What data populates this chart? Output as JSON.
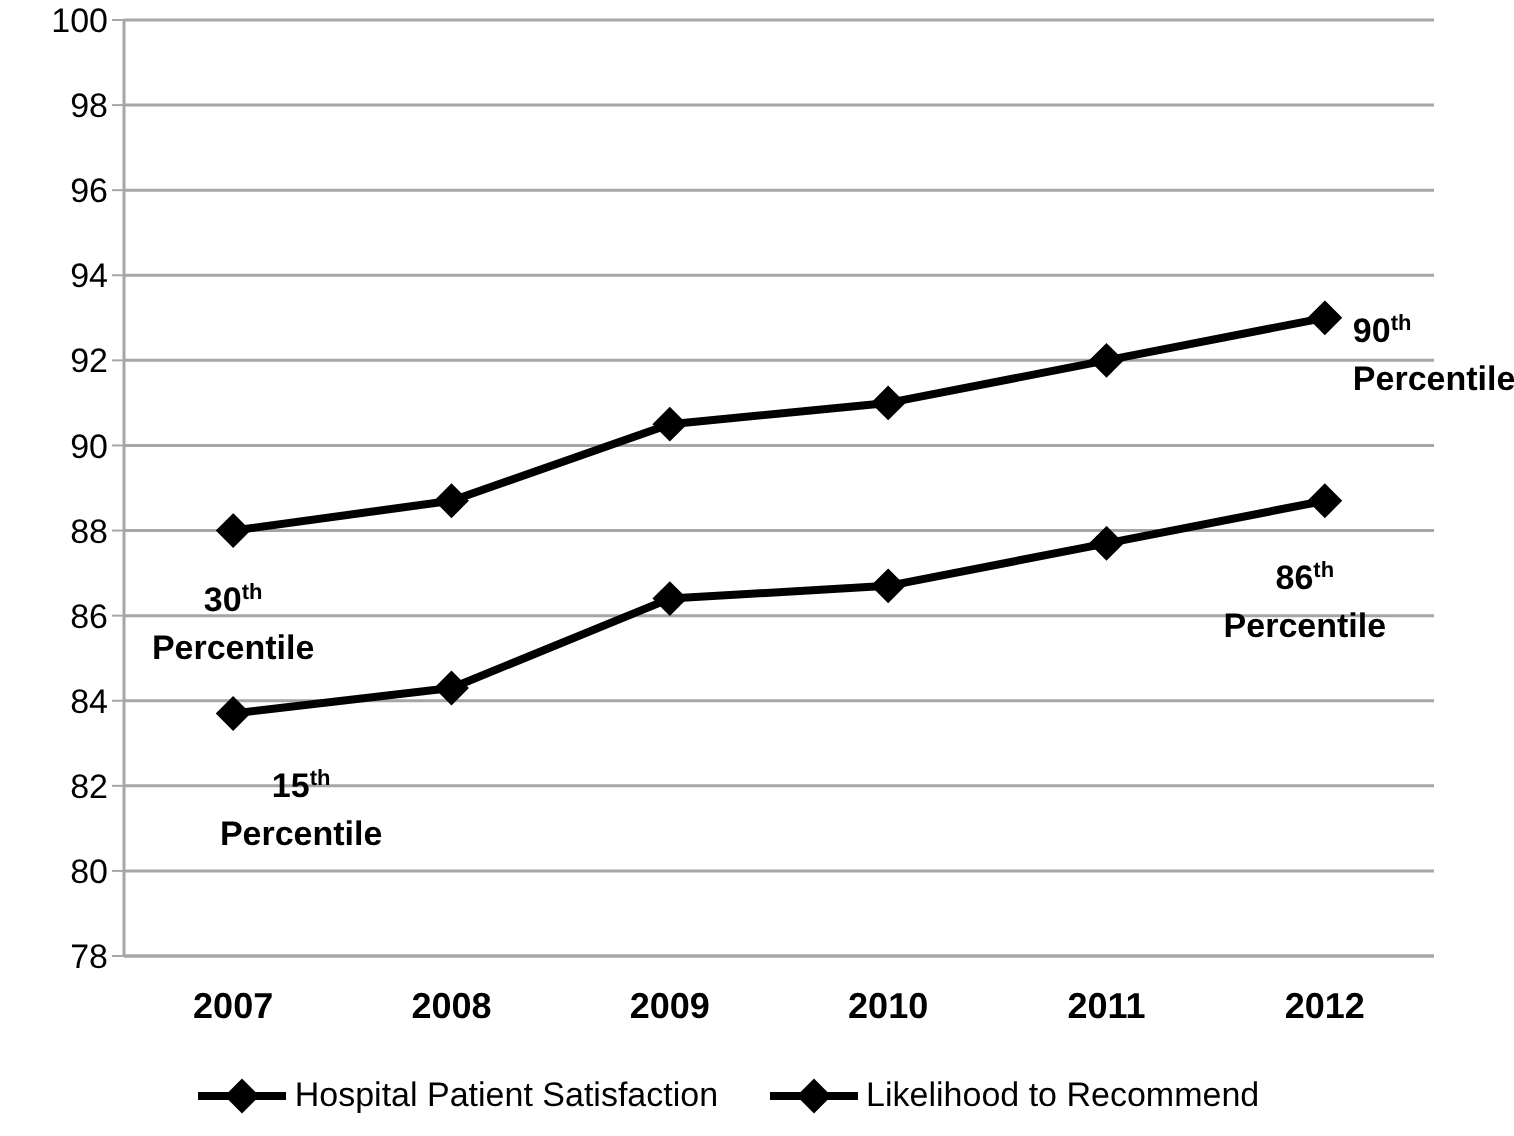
{
  "chart_data": {
    "type": "line",
    "categories": [
      "2007",
      "2008",
      "2009",
      "2010",
      "2011",
      "2012"
    ],
    "series": [
      {
        "name": "Hospital Patient Satisfaction",
        "color": "#000000",
        "values": [
          83.7,
          84.3,
          86.4,
          86.7,
          87.7,
          88.7
        ]
      },
      {
        "name": "Likelihood to Recommend",
        "color": "#000000",
        "values": [
          88.0,
          88.7,
          90.5,
          91.0,
          92.0,
          93.0
        ]
      }
    ],
    "ylim": [
      78,
      100
    ],
    "yticks": [
      78,
      80,
      82,
      84,
      86,
      88,
      90,
      92,
      94,
      96,
      98,
      100
    ],
    "grid": "y",
    "legend": "bottom",
    "marker": "diamond",
    "line_style": "solid",
    "annotations": [
      {
        "text": "30$^{th}$ Percentile",
        "x": "2007",
        "y": 88.0
      },
      {
        "text": "15$^{th}$ Percentile",
        "x": "2007",
        "y": 83.7
      },
      {
        "text": "90$^{th}$ Percentile",
        "x": "2012",
        "y": 93.0
      },
      {
        "text": "86$^{th}$ Percentile",
        "x": "2012",
        "y": 88.7
      }
    ]
  }
}
